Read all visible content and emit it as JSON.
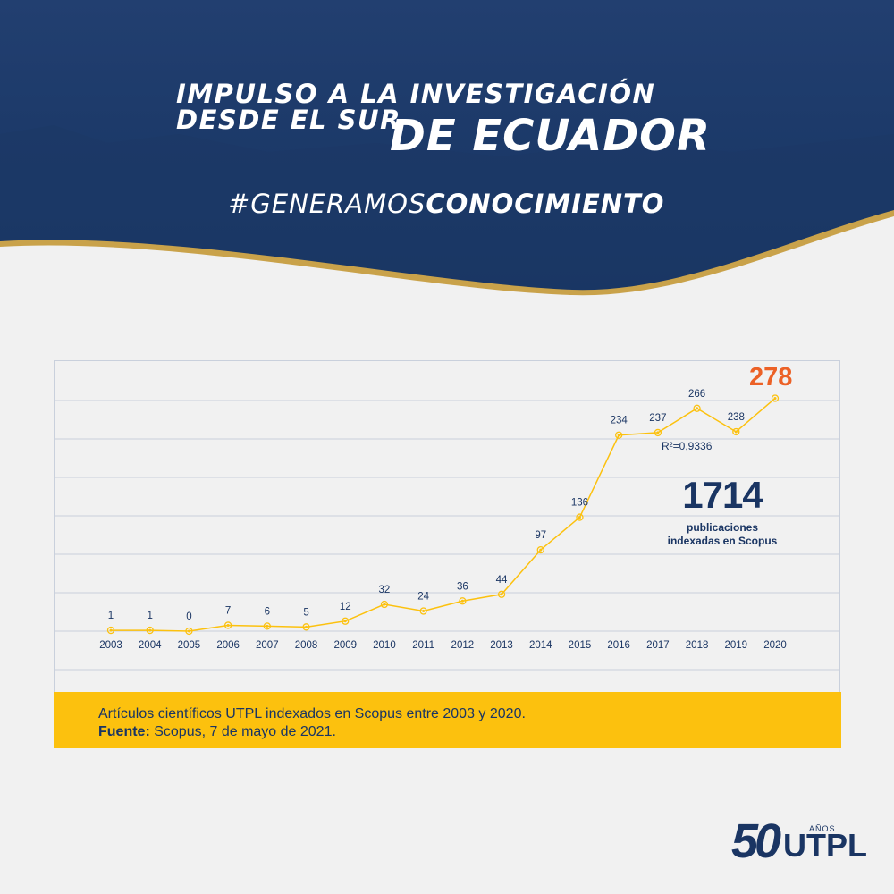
{
  "header": {
    "title_line1": "IMPULSO A LA INVESTIGACIÓN",
    "title_line2_small": "DESDE EL SUR",
    "title_line2_big": "DE ECUADOR",
    "hashtag_light": "#GENERAMOS",
    "hashtag_bold": "CONOCIMIENTO",
    "bg_color": "#1a3a6c",
    "accent_color": "#c9a24a"
  },
  "chart_data": {
    "type": "line",
    "x": [
      "2003",
      "2004",
      "2005",
      "2006",
      "2007",
      "2008",
      "2009",
      "2010",
      "2011",
      "2012",
      "2013",
      "2014",
      "2015",
      "2016",
      "2017",
      "2018",
      "2019",
      "2020"
    ],
    "values": [
      1,
      1,
      0,
      7,
      6,
      5,
      12,
      32,
      24,
      36,
      44,
      97,
      136,
      234,
      237,
      266,
      238,
      278
    ],
    "line_color": "#fcc10e",
    "label_color": "#1a3563",
    "highlight_color": "#ec6126",
    "annotation_r2": "R²=0,9336",
    "highlight_value": "278",
    "ylim": [
      0,
      300
    ],
    "grid": true
  },
  "summary": {
    "total": "1714",
    "label_line1": "publicaciones",
    "label_line2": "indexadas en Scopus"
  },
  "caption": {
    "text": "Artículos científicos UTPL indexados en Scopus entre 2003 y 2020.",
    "source_label": "Fuente:",
    "source_text": " Scopus, 7 de mayo de 2021."
  },
  "logo": {
    "number": "50",
    "anos": "AÑOS",
    "name": "UTPL"
  }
}
